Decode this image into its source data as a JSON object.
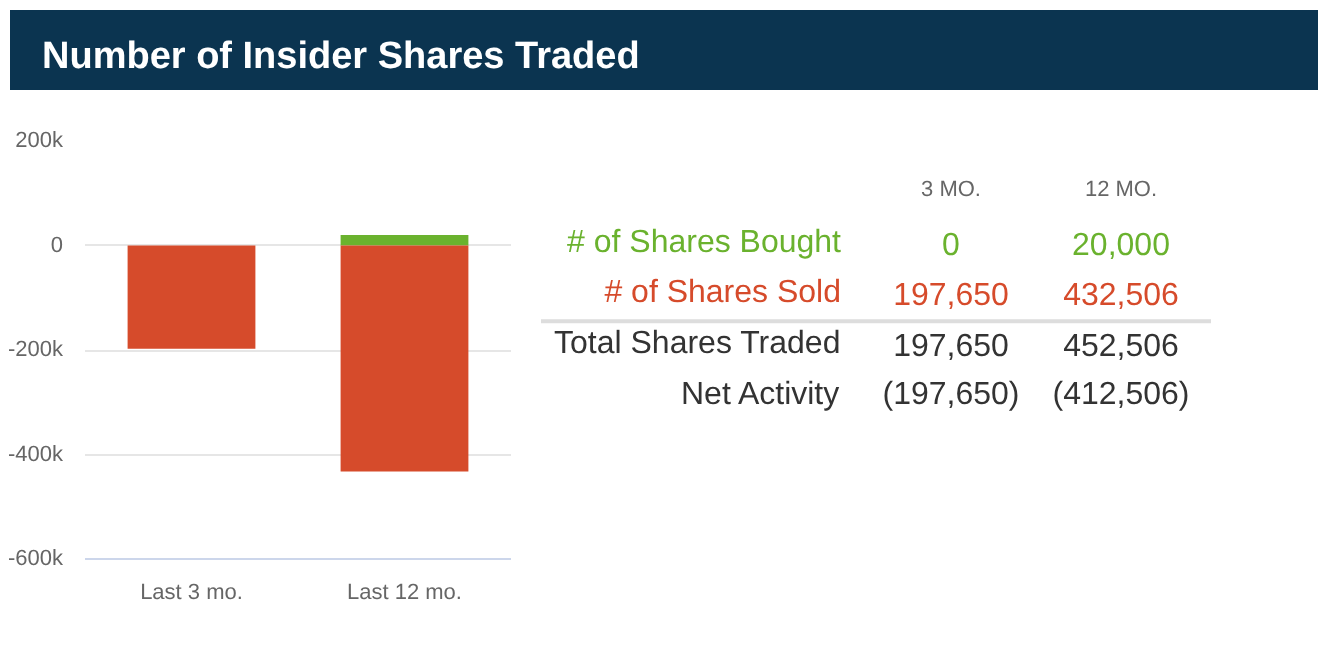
{
  "chart_data": {
    "type": "bar",
    "title": "Number of Insider Shares Traded",
    "categories": [
      "Last 3 mo.",
      "Last 12 mo."
    ],
    "stacked": true,
    "series": [
      {
        "name": "# of Shares Bought",
        "color": "#6ab22e",
        "values": [
          0,
          20000
        ]
      },
      {
        "name": "# of Shares Sold",
        "color": "#d64b2b",
        "values": [
          -197650,
          -432506
        ]
      }
    ],
    "ylim": [
      -600000,
      200000
    ],
    "yticks": [
      {
        "value": -600000,
        "label": "-600k"
      },
      {
        "value": -400000,
        "label": "-400k"
      },
      {
        "value": -200000,
        "label": "-200k"
      },
      {
        "value": 0,
        "label": "0"
      },
      {
        "value": 200000,
        "label": "200k"
      }
    ],
    "grid": "y",
    "legend": false,
    "annotations": [
      "3 MO.",
      "12 MO.",
      "0",
      "20,000",
      "197,650",
      "432,506",
      "Total Shares Traded",
      "197,650",
      "452,506",
      "Net Activity",
      "(197,650)",
      "(412,506)"
    ]
  }
}
